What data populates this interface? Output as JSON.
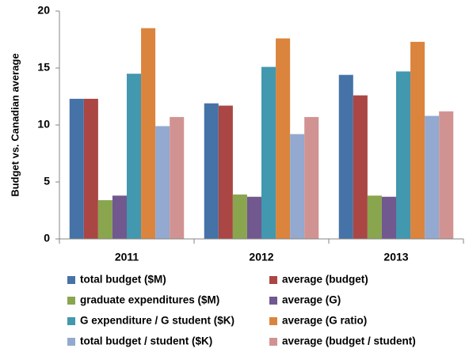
{
  "chart_data": {
    "type": "bar",
    "ylabel": "Budget vs. Canadian average",
    "categories": [
      "2011",
      "2012",
      "2013"
    ],
    "series": [
      {
        "name": "total budget ($M)",
        "color": "#4572a7",
        "values": [
          12.3,
          11.9,
          14.4
        ]
      },
      {
        "name": "average (budget)",
        "color": "#aa4643",
        "values": [
          12.3,
          11.7,
          12.6
        ]
      },
      {
        "name": "graduate expenditures ($M)",
        "color": "#89a54e",
        "values": [
          3.4,
          3.9,
          3.8
        ]
      },
      {
        "name": "average (G)",
        "color": "#71588f",
        "values": [
          3.8,
          3.7,
          3.7
        ]
      },
      {
        "name": "G expenditure / G student ($K)",
        "color": "#4198af",
        "values": [
          14.5,
          15.1,
          14.7
        ]
      },
      {
        "name": "average (G ratio)",
        "color": "#db843d",
        "values": [
          18.5,
          17.6,
          17.3
        ]
      },
      {
        "name": "total budget / student ($K)",
        "color": "#93a9cf",
        "values": [
          9.9,
          9.2,
          10.8
        ]
      },
      {
        "name": "average (budget / student)",
        "color": "#d19392",
        "values": [
          10.7,
          10.7,
          11.2
        ]
      }
    ],
    "ylim": [
      0,
      20
    ],
    "yticks": [
      0,
      5,
      10,
      15,
      20
    ],
    "grid": false,
    "legend": "bottom"
  }
}
